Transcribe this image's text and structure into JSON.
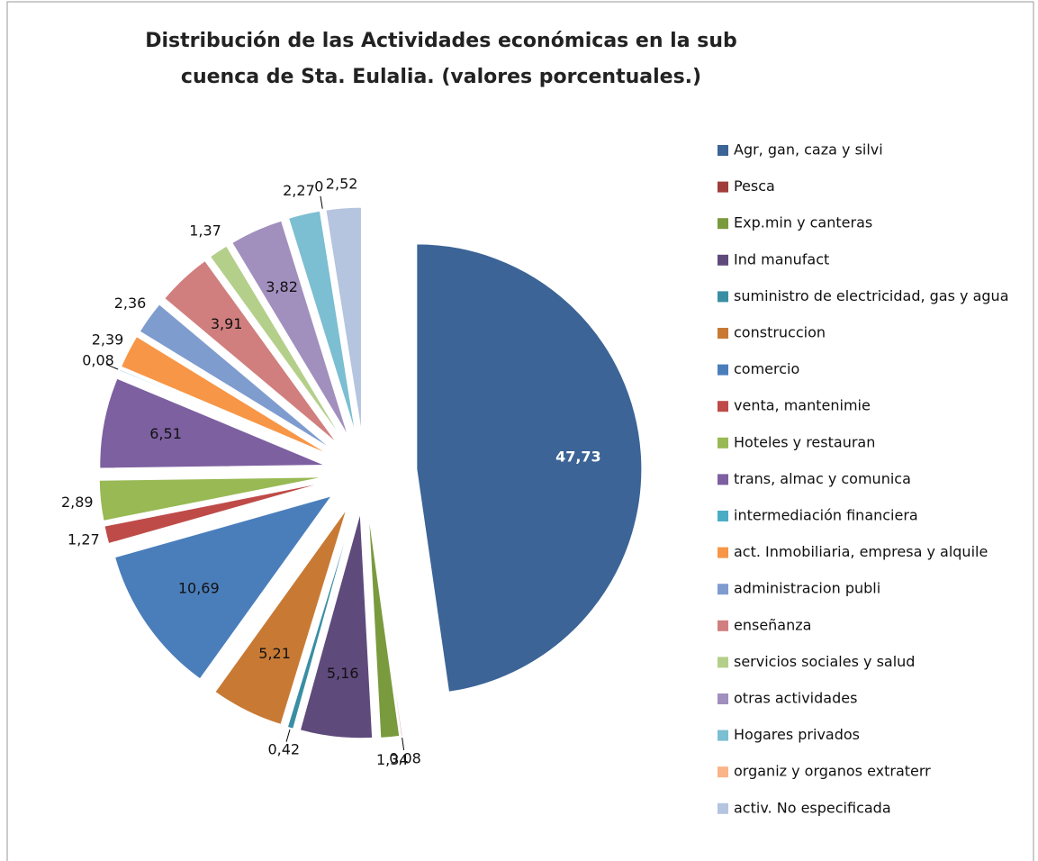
{
  "chart_data": {
    "type": "pie",
    "title": "Distribución de las Actividades económicas en la sub cuenca de Sta. Eulalia. (valores porcentuales.)",
    "categories": [
      "Agr, gan, caza y silvi",
      "Pesca",
      "Exp.min y canteras",
      "Ind manufact",
      "suministro de electricidad, gas y agua",
      "construccion",
      "comercio",
      "venta, mantenimie",
      "Hoteles y restauran",
      "trans, almac y comunica",
      "intermediación financiera",
      "act. Inmobiliaria, empresa y alquile",
      "administracion publi",
      "enseñanza",
      "servicios sociales y salud",
      "otras actividades",
      "Hogares privados",
      "organiz y organos extraterr",
      "activ. No especificada"
    ],
    "values": [
      47.73,
      0.08,
      1.34,
      5.16,
      0.42,
      5.21,
      10.69,
      1.27,
      2.89,
      6.51,
      0.08,
      2.39,
      2.36,
      3.91,
      1.37,
      3.82,
      2.27,
      0,
      2.52
    ],
    "value_labels": [
      "47,73",
      "0,08",
      "1,34",
      "5,16",
      "0,42",
      "5,21",
      "10,69",
      "1,27",
      "2,89",
      "6,51",
      "0,08",
      "2,39",
      "2,36",
      "3,91",
      "1,37",
      "3,82",
      "2,27",
      "0",
      "2,52"
    ],
    "colors": [
      "#3C6496",
      "#A03C3A",
      "#7A9A3E",
      "#5F4A7C",
      "#3A8EA4",
      "#C87A34",
      "#4A7EBB",
      "#BE4B48",
      "#98B954",
      "#7D60A0",
      "#4BACC6",
      "#F79646",
      "#7F9CCF",
      "#D07F7E",
      "#B3CF8A",
      "#A18FBE",
      "#7CBED2",
      "#F9B487",
      "#B5C4DF"
    ],
    "legend": "right"
  }
}
